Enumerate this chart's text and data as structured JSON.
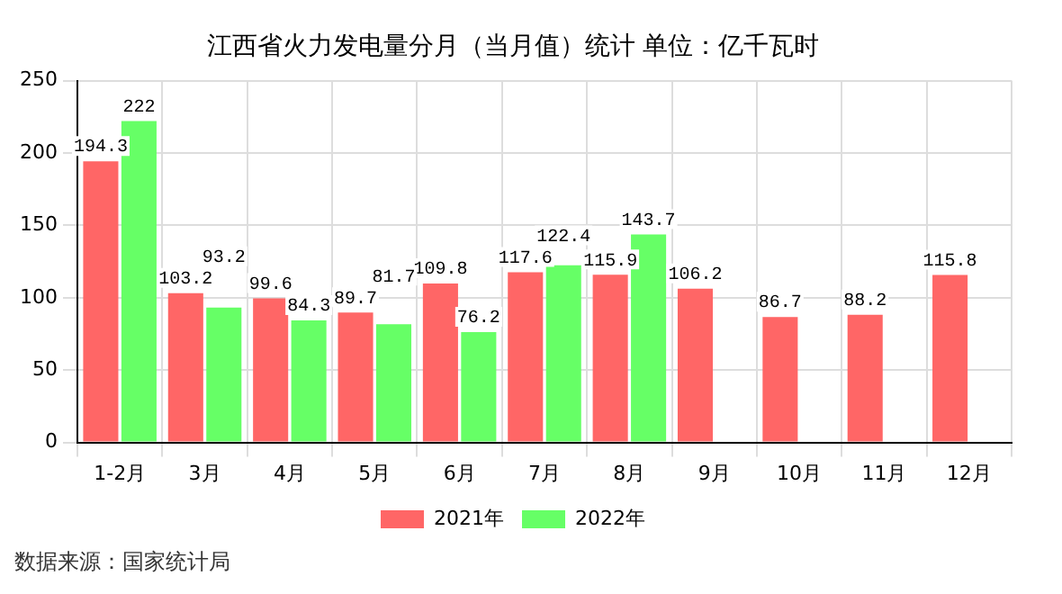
{
  "chart_data": {
    "type": "bar",
    "title": "江西省火力发电量分月（当月值）统计 单位：亿千瓦时",
    "categories": [
      "1-2月",
      "3月",
      "4月",
      "5月",
      "6月",
      "7月",
      "8月",
      "9月",
      "10月",
      "11月",
      "12月"
    ],
    "series": [
      {
        "name": "2021年",
        "color": "#ff6666",
        "values": [
          194.3,
          103.2,
          99.6,
          89.7,
          109.8,
          117.6,
          115.9,
          106.2,
          86.7,
          88.2,
          115.8
        ]
      },
      {
        "name": "2022年",
        "color": "#66ff66",
        "values": [
          222,
          93.2,
          84.3,
          81.7,
          76.2,
          122.4,
          143.7,
          null,
          null,
          null,
          null
        ]
      }
    ],
    "ylim": [
      0,
      250
    ],
    "yticks": [
      0,
      50,
      100,
      150,
      200,
      250
    ],
    "grid": true,
    "legend": "bottom",
    "data_labels": true,
    "annotations": [
      "数据来源：国家统计局"
    ]
  }
}
